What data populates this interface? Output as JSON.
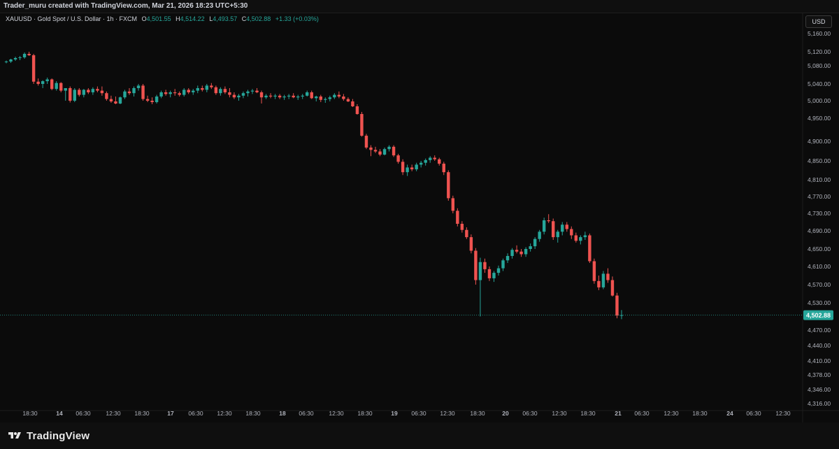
{
  "header": {
    "credit": "Trader_muru created with TradingView.com, Mar 21, 2026 18:23 UTC+5:30"
  },
  "legend": {
    "symbol": "XAUUSD · Gold Spot / U.S. Dollar · 1h · FXCM",
    "o_label": "O",
    "o_value": "4,501.55",
    "h_label": "H",
    "h_value": "4,514.22",
    "l_label": "L",
    "l_value": "4,493.57",
    "c_label": "C",
    "c_value": "4,502.88",
    "change": "+1.33 (+0.03%)"
  },
  "currency_button": "USD",
  "footer": {
    "brand": "TradingView"
  },
  "colors": {
    "up": "#26a69a",
    "down": "#ef5350",
    "price_line": "#26a69a",
    "background": "#0b0b0b"
  },
  "chart_data": {
    "type": "candlestick",
    "price_label": "4,502.88",
    "current_price": 4502.88,
    "y_ticks": [
      {
        "label": "5,160.00",
        "value": 5160
      },
      {
        "label": "5,120.00",
        "value": 5120
      },
      {
        "label": "5,080.00",
        "value": 5080
      },
      {
        "label": "5,040.00",
        "value": 5040
      },
      {
        "label": "5,000.00",
        "value": 5000
      },
      {
        "label": "4,950.00",
        "value": 4950
      },
      {
        "label": "4,900.00",
        "value": 4900
      },
      {
        "label": "4,850.00",
        "value": 4850
      },
      {
        "label": "4,810.00",
        "value": 4810
      },
      {
        "label": "4,770.00",
        "value": 4770
      },
      {
        "label": "4,730.00",
        "value": 4730
      },
      {
        "label": "4,690.00",
        "value": 4690
      },
      {
        "label": "4,650.00",
        "value": 4650
      },
      {
        "label": "4,610.00",
        "value": 4610
      },
      {
        "label": "4,570.00",
        "value": 4570
      },
      {
        "label": "4,530.00",
        "value": 4530
      },
      {
        "label": "4,470.00",
        "value": 4470
      },
      {
        "label": "4,440.00",
        "value": 4440
      },
      {
        "label": "4,410.00",
        "value": 4410
      },
      {
        "label": "4,378.00",
        "value": 4378
      },
      {
        "label": "4,346.00",
        "value": 4346
      },
      {
        "label": "4,316.00",
        "value": 4316
      }
    ],
    "x_ticks": [
      {
        "label": "18:30",
        "bold": false
      },
      {
        "label": "14",
        "bold": true
      },
      {
        "label": "06:30",
        "bold": false
      },
      {
        "label": "12:30",
        "bold": false
      },
      {
        "label": "18:30",
        "bold": false
      },
      {
        "label": "17",
        "bold": true
      },
      {
        "label": "06:30",
        "bold": false
      },
      {
        "label": "12:30",
        "bold": false
      },
      {
        "label": "18:30",
        "bold": false
      },
      {
        "label": "18",
        "bold": true
      },
      {
        "label": "06:30",
        "bold": false
      },
      {
        "label": "12:30",
        "bold": false
      },
      {
        "label": "18:30",
        "bold": false
      },
      {
        "label": "19",
        "bold": true
      },
      {
        "label": "06:30",
        "bold": false
      },
      {
        "label": "12:30",
        "bold": false
      },
      {
        "label": "18:30",
        "bold": false
      },
      {
        "label": "20",
        "bold": true
      },
      {
        "label": "06:30",
        "bold": false
      },
      {
        "label": "12:30",
        "bold": false
      },
      {
        "label": "18:30",
        "bold": false
      },
      {
        "label": "21",
        "bold": true
      },
      {
        "label": "06:30",
        "bold": false
      },
      {
        "label": "12:30",
        "bold": false
      },
      {
        "label": "18:30",
        "bold": false
      },
      {
        "label": "24",
        "bold": true
      },
      {
        "label": "06:30",
        "bold": false
      },
      {
        "label": "12:30",
        "bold": false
      }
    ],
    "candles": [
      [
        5090,
        5095,
        5087,
        5092
      ],
      [
        5092,
        5100,
        5088,
        5098
      ],
      [
        5098,
        5106,
        5094,
        5102
      ],
      [
        5102,
        5108,
        5096,
        5104
      ],
      [
        5104,
        5118,
        5100,
        5114
      ],
      [
        5114,
        5120,
        5108,
        5110
      ],
      [
        5110,
        5114,
        5040,
        5045
      ],
      [
        5045,
        5052,
        5036,
        5040
      ],
      [
        5040,
        5048,
        5030,
        5046
      ],
      [
        5046,
        5054,
        5040,
        5050
      ],
      [
        5050,
        5052,
        5025,
        5028
      ],
      [
        5028,
        5046,
        5024,
        5042
      ],
      [
        5042,
        5044,
        5020,
        5024
      ],
      [
        5024,
        5030,
        5000,
        5030
      ],
      [
        5030,
        5034,
        4995,
        5000
      ],
      [
        5000,
        5030,
        4996,
        5026
      ],
      [
        5026,
        5030,
        5010,
        5014
      ],
      [
        5014,
        5028,
        5008,
        5026
      ],
      [
        5026,
        5030,
        5016,
        5020
      ],
      [
        5020,
        5032,
        5014,
        5028
      ],
      [
        5028,
        5034,
        5020,
        5024
      ],
      [
        5024,
        5034,
        5012,
        5018
      ],
      [
        5018,
        5022,
        5000,
        5004
      ],
      [
        5004,
        5012,
        4994,
        4998
      ],
      [
        4998,
        5010,
        4990,
        4992
      ],
      [
        4992,
        5010,
        4990,
        5008
      ],
      [
        5008,
        5026,
        5004,
        5022
      ],
      [
        5022,
        5030,
        5014,
        5018
      ],
      [
        5018,
        5034,
        5010,
        5030
      ],
      [
        5030,
        5040,
        5024,
        5036
      ],
      [
        5036,
        5040,
        5000,
        5004
      ],
      [
        5004,
        5012,
        4996,
        5000
      ],
      [
        5000,
        5008,
        4990,
        4996
      ],
      [
        4996,
        5014,
        4992,
        5010
      ],
      [
        5010,
        5024,
        5006,
        5020
      ],
      [
        5020,
        5026,
        5012,
        5016
      ],
      [
        5016,
        5024,
        5008,
        5020
      ],
      [
        5020,
        5028,
        5012,
        5018
      ],
      [
        5018,
        5022,
        5010,
        5014
      ],
      [
        5014,
        5030,
        5010,
        5026
      ],
      [
        5026,
        5030,
        5016,
        5020
      ],
      [
        5020,
        5028,
        5014,
        5024
      ],
      [
        5024,
        5036,
        5018,
        5030
      ],
      [
        5030,
        5036,
        5022,
        5026
      ],
      [
        5026,
        5040,
        5020,
        5036
      ],
      [
        5036,
        5042,
        5028,
        5032
      ],
      [
        5032,
        5036,
        5014,
        5018
      ],
      [
        5018,
        5032,
        5012,
        5028
      ],
      [
        5028,
        5034,
        5016,
        5020
      ],
      [
        5020,
        5030,
        5008,
        5014
      ],
      [
        5014,
        5020,
        5004,
        5008
      ],
      [
        5008,
        5016,
        5000,
        5012
      ],
      [
        5012,
        5022,
        5006,
        5018
      ],
      [
        5018,
        5026,
        5010,
        5022
      ],
      [
        5022,
        5028,
        5016,
        5024
      ],
      [
        5024,
        5030,
        5018,
        5020
      ],
      [
        5020,
        5024,
        4992,
        5008
      ],
      [
        5008,
        5016,
        5004,
        5012
      ],
      [
        5012,
        5018,
        5006,
        5010
      ],
      [
        5010,
        5016,
        5004,
        5012
      ],
      [
        5012,
        5016,
        5004,
        5008
      ],
      [
        5008,
        5014,
        5002,
        5010
      ],
      [
        5010,
        5016,
        5004,
        5012
      ],
      [
        5012,
        5018,
        5006,
        5008
      ],
      [
        5008,
        5014,
        5002,
        5010
      ],
      [
        5010,
        5016,
        5004,
        5012
      ],
      [
        5012,
        5024,
        5010,
        5020
      ],
      [
        5020,
        5024,
        5004,
        5006
      ],
      [
        5006,
        5012,
        4998,
        5010
      ],
      [
        5010,
        5014,
        4996,
        5002
      ],
      [
        5002,
        5008,
        4994,
        5004
      ],
      [
        5004,
        5012,
        4998,
        5008
      ],
      [
        5008,
        5018,
        5004,
        5014
      ],
      [
        5014,
        5022,
        5006,
        5010
      ],
      [
        5010,
        5016,
        5000,
        5004
      ],
      [
        5004,
        5008,
        4996,
        4998
      ],
      [
        4998,
        5004,
        4982,
        4984
      ],
      [
        4984,
        4990,
        4960,
        4962
      ],
      [
        4962,
        4968,
        4910,
        4912
      ],
      [
        4912,
        4916,
        4880,
        4884
      ],
      [
        4884,
        4890,
        4862,
        4878
      ],
      [
        4878,
        4886,
        4870,
        4874
      ],
      [
        4874,
        4880,
        4862,
        4866
      ],
      [
        4866,
        4884,
        4864,
        4880
      ],
      [
        4880,
        4890,
        4874,
        4886
      ],
      [
        4886,
        4890,
        4860,
        4864
      ],
      [
        4864,
        4868,
        4844,
        4848
      ],
      [
        4848,
        4854,
        4820,
        4826
      ],
      [
        4826,
        4842,
        4818,
        4836
      ],
      [
        4836,
        4842,
        4828,
        4832
      ],
      [
        4832,
        4846,
        4828,
        4842
      ],
      [
        4842,
        4850,
        4836,
        4846
      ],
      [
        4846,
        4856,
        4840,
        4852
      ],
      [
        4852,
        4862,
        4846,
        4858
      ],
      [
        4858,
        4864,
        4850,
        4854
      ],
      [
        4854,
        4858,
        4840,
        4844
      ],
      [
        4844,
        4848,
        4820,
        4826
      ],
      [
        4826,
        4830,
        4760,
        4766
      ],
      [
        4766,
        4772,
        4730,
        4736
      ],
      [
        4736,
        4742,
        4700,
        4706
      ],
      [
        4706,
        4712,
        4686,
        4692
      ],
      [
        4692,
        4698,
        4672,
        4676
      ],
      [
        4676,
        4682,
        4640,
        4646
      ],
      [
        4646,
        4652,
        4570,
        4580
      ],
      [
        4580,
        4630,
        4500,
        4620
      ],
      [
        4620,
        4628,
        4596,
        4604
      ],
      [
        4604,
        4610,
        4578,
        4584
      ],
      [
        4584,
        4600,
        4576,
        4596
      ],
      [
        4596,
        4612,
        4590,
        4606
      ],
      [
        4606,
        4628,
        4600,
        4624
      ],
      [
        4624,
        4640,
        4618,
        4634
      ],
      [
        4634,
        4652,
        4628,
        4648
      ],
      [
        4648,
        4658,
        4640,
        4644
      ],
      [
        4644,
        4650,
        4632,
        4638
      ],
      [
        4638,
        4654,
        4632,
        4650
      ],
      [
        4650,
        4662,
        4644,
        4656
      ],
      [
        4656,
        4676,
        4650,
        4672
      ],
      [
        4672,
        4692,
        4666,
        4688
      ],
      [
        4688,
        4720,
        4682,
        4714
      ],
      [
        4714,
        4728,
        4708,
        4712
      ],
      [
        4712,
        4718,
        4670,
        4676
      ],
      [
        4676,
        4692,
        4664,
        4688
      ],
      [
        4688,
        4710,
        4680,
        4704
      ],
      [
        4704,
        4710,
        4688,
        4694
      ],
      [
        4694,
        4700,
        4672,
        4680
      ],
      [
        4680,
        4686,
        4664,
        4668
      ],
      [
        4668,
        4680,
        4660,
        4676
      ],
      [
        4676,
        4688,
        4670,
        4680
      ],
      [
        4680,
        4684,
        4618,
        4622
      ],
      [
        4622,
        4628,
        4572,
        4578
      ],
      [
        4578,
        4590,
        4558,
        4564
      ],
      [
        4564,
        4600,
        4560,
        4594
      ],
      [
        4594,
        4606,
        4574,
        4580
      ],
      [
        4580,
        4588,
        4544,
        4546
      ],
      [
        4546,
        4552,
        4496,
        4502
      ],
      [
        4502,
        4514,
        4494,
        4503
      ]
    ]
  }
}
